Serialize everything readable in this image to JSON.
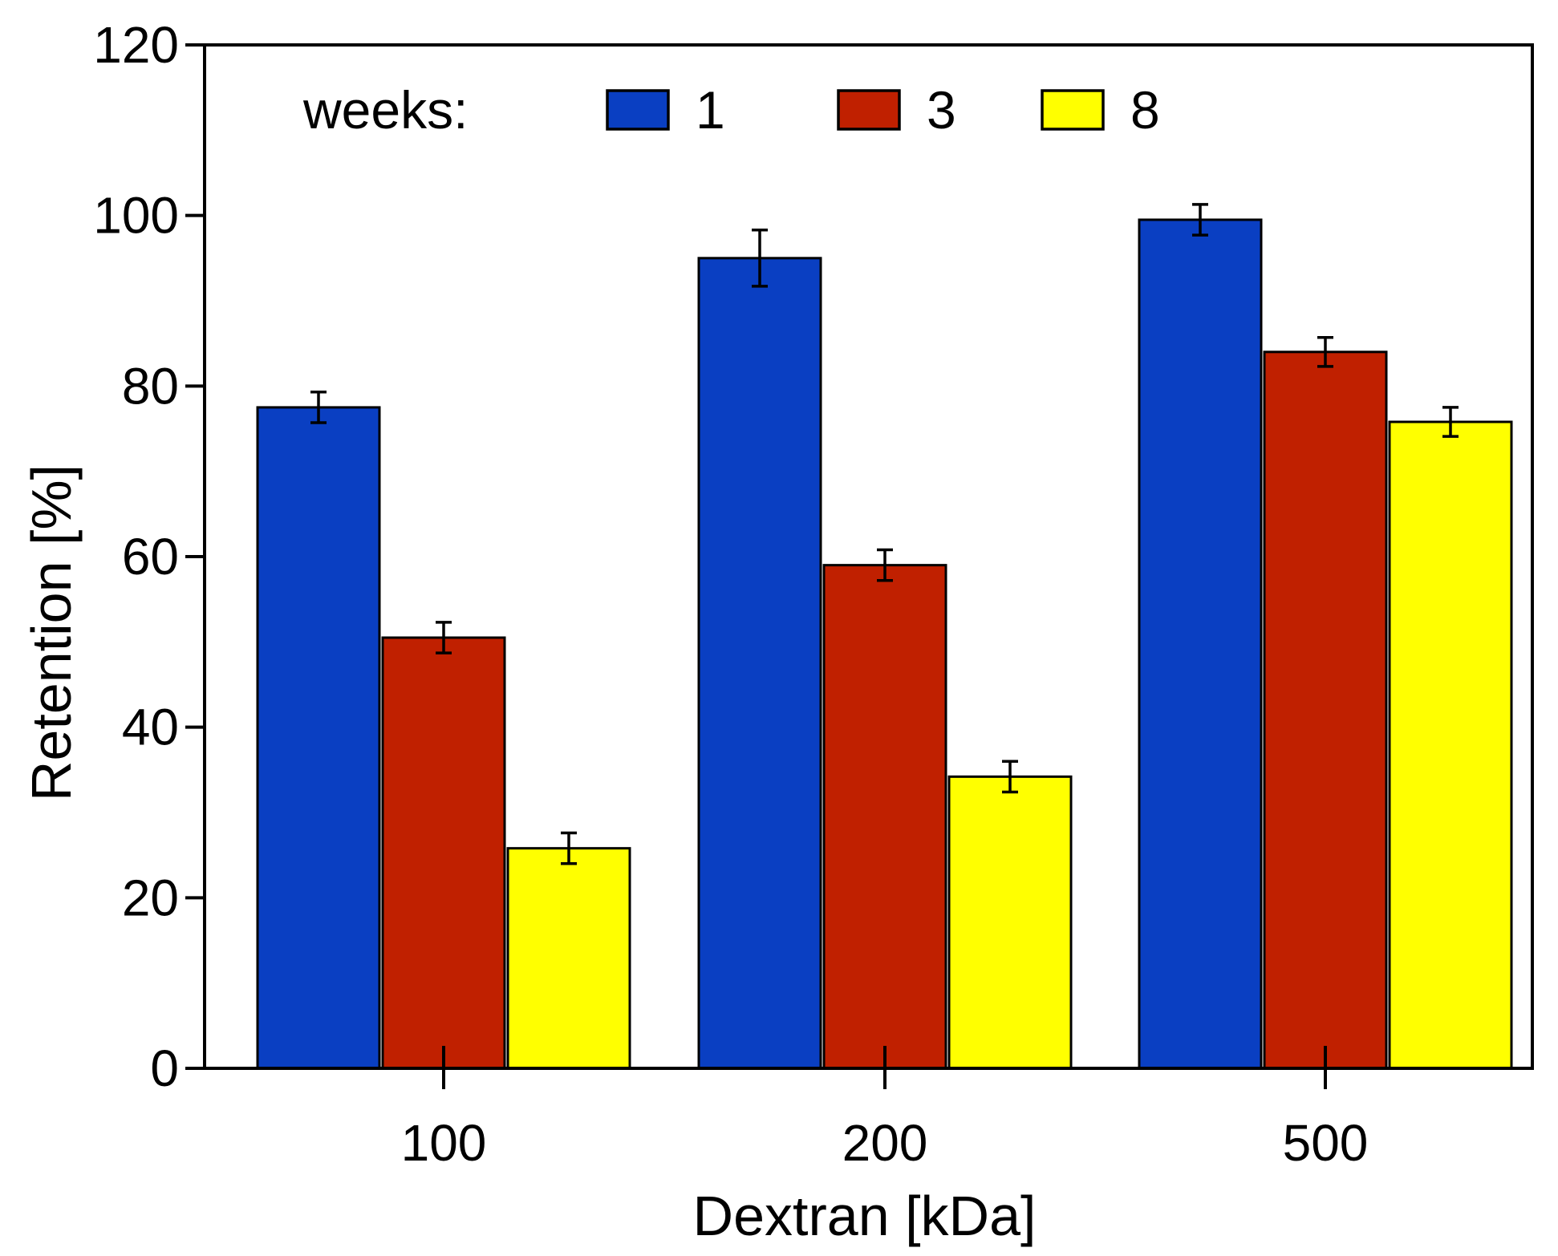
{
  "chart_data": {
    "type": "bar",
    "title": "",
    "xlabel": "Dextran [kDa]",
    "ylabel": "Retention [%]",
    "categories": [
      "100",
      "200",
      "500"
    ],
    "ylim": [
      0,
      120
    ],
    "yticks": [
      "0",
      "20",
      "40",
      "60",
      "80",
      "100",
      "120"
    ],
    "legend": {
      "title": "weeks:",
      "placement": "top"
    },
    "series": [
      {
        "name": "1",
        "color": "#0a3fc2",
        "values": [
          77.5,
          95,
          99.5
        ],
        "errors": [
          1.8,
          3.3,
          1.8
        ]
      },
      {
        "name": "3",
        "color": "#c02000",
        "values": [
          50.5,
          59,
          84
        ],
        "errors": [
          1.8,
          1.8,
          1.7
        ]
      },
      {
        "name": "8",
        "color": "#ffff00",
        "values": [
          25.8,
          34.2,
          75.8
        ],
        "errors": [
          1.8,
          1.8,
          1.7
        ]
      }
    ]
  }
}
